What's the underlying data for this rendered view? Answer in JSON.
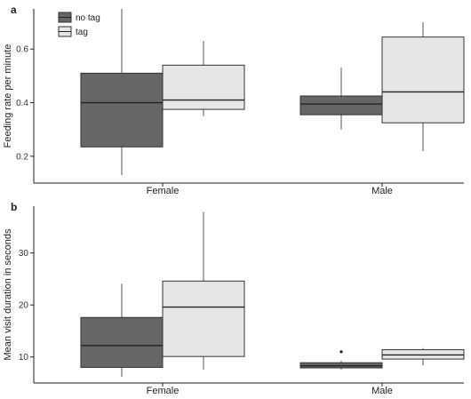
{
  "legend": {
    "entries": [
      {
        "label": "no tag",
        "color": "#666666"
      },
      {
        "label": "tag",
        "color": "#e6e6e6"
      }
    ]
  },
  "chart_data": [
    {
      "type": "box",
      "panel_label": "a",
      "title": "",
      "xlabel": "",
      "ylabel": "Feeding rate per minute",
      "ylim": [
        0.1,
        0.75
      ],
      "yticks": [
        0.2,
        0.4,
        0.6
      ],
      "ytick_labels": [
        "0.2",
        "0.4",
        "0.6"
      ],
      "categories": [
        "Female",
        "Male"
      ],
      "series": [
        {
          "name": "no tag",
          "color": "#666666",
          "boxes": [
            {
              "min": 0.13,
              "q1": 0.235,
              "median": 0.4,
              "q3": 0.51,
              "max": 0.75,
              "outliers": []
            },
            {
              "min": 0.3,
              "q1": 0.355,
              "median": 0.395,
              "q3": 0.425,
              "max": 0.53,
              "outliers": []
            }
          ]
        },
        {
          "name": "tag",
          "color": "#e6e6e6",
          "boxes": [
            {
              "min": 0.35,
              "q1": 0.375,
              "median": 0.41,
              "q3": 0.54,
              "max": 0.63,
              "outliers": []
            },
            {
              "min": 0.22,
              "q1": 0.325,
              "median": 0.44,
              "q3": 0.645,
              "max": 0.7,
              "outliers": []
            }
          ]
        }
      ]
    },
    {
      "type": "box",
      "panel_label": "b",
      "title": "",
      "xlabel": "",
      "ylabel": "Mean visit duration in seconds",
      "ylim": [
        5,
        39
      ],
      "yticks": [
        10,
        20,
        30
      ],
      "ytick_labels": [
        "10",
        "20",
        "30"
      ],
      "categories": [
        "Female",
        "Male"
      ],
      "series": [
        {
          "name": "no tag",
          "color": "#666666",
          "boxes": [
            {
              "min": 6.2,
              "q1": 8.0,
              "median": 12.2,
              "q3": 17.6,
              "max": 24.1,
              "outliers": []
            },
            {
              "min": 7.6,
              "q1": 7.9,
              "median": 8.3,
              "q3": 8.9,
              "max": 9.3,
              "outliers": [
                11.0
              ]
            }
          ]
        },
        {
          "name": "tag",
          "color": "#e6e6e6",
          "boxes": [
            {
              "min": 7.6,
              "q1": 10.1,
              "median": 19.6,
              "q3": 24.6,
              "max": 37.9,
              "outliers": []
            },
            {
              "min": 8.4,
              "q1": 9.6,
              "median": 10.4,
              "q3": 11.4,
              "max": 11.7,
              "outliers": []
            }
          ]
        }
      ]
    }
  ]
}
